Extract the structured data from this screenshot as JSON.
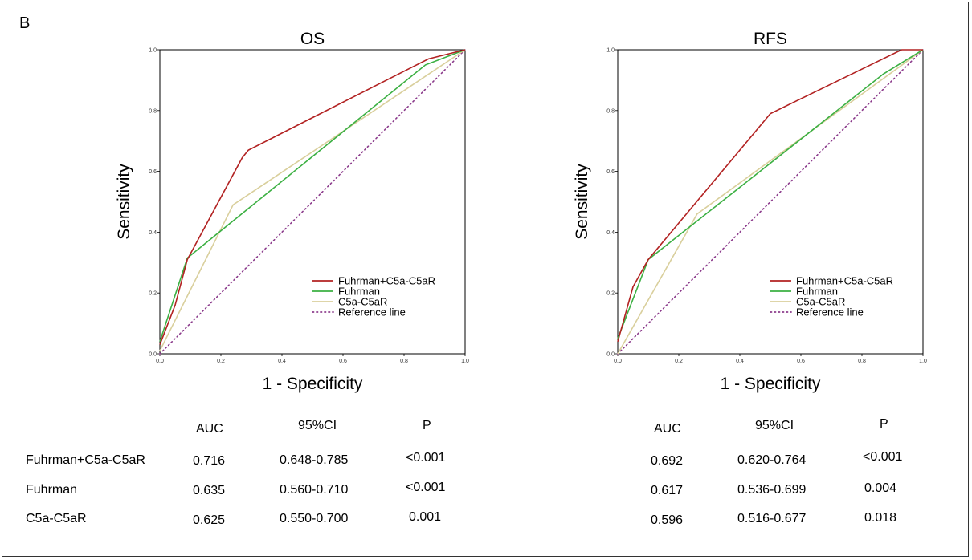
{
  "panel_label": "B",
  "chart_data": [
    {
      "type": "line",
      "title": "OS",
      "xlabel": "1 - Specificity",
      "ylabel": "Sensitivity",
      "xlim": [
        0,
        1
      ],
      "ylim": [
        0,
        1
      ],
      "ticks": [
        "0.0",
        "0.2",
        "0.4",
        "0.6",
        "0.8",
        "1.0"
      ],
      "legend": "bottom-right",
      "series": [
        {
          "name": "Fuhrman+C5a-C5aR",
          "color": "#b22222",
          "dash": "",
          "x": [
            0,
            0.05,
            0.09,
            0.27,
            0.29,
            0.88,
            0.9,
            1.0
          ],
          "y": [
            0.03,
            0.16,
            0.31,
            0.645,
            0.67,
            0.97,
            0.975,
            1.0
          ]
        },
        {
          "name": "Fuhrman",
          "color": "#3cb043",
          "dash": "",
          "x": [
            0,
            0.09,
            0.87,
            1.0
          ],
          "y": [
            0.04,
            0.315,
            0.95,
            1.0
          ]
        },
        {
          "name": "C5a-C5aR",
          "color": "#d9cf9c",
          "dash": "",
          "x": [
            0,
            0.24,
            1.0
          ],
          "y": [
            0.01,
            0.49,
            1.0
          ]
        },
        {
          "name": "Reference line",
          "color": "#8b3a8b",
          "dash": "1.5,3.5",
          "x": [
            0,
            1
          ],
          "y": [
            0,
            1
          ]
        }
      ]
    },
    {
      "type": "line",
      "title": "RFS",
      "xlabel": "1 - Specificity",
      "ylabel": "Sensitivity",
      "xlim": [
        0,
        1
      ],
      "ylim": [
        0,
        1
      ],
      "ticks": [
        "0.0",
        "0.2",
        "0.4",
        "0.6",
        "0.8",
        "1.0"
      ],
      "legend": "bottom-right",
      "series": [
        {
          "name": "Fuhrman+C5a-C5aR",
          "color": "#b22222",
          "dash": "",
          "x": [
            0,
            0.05,
            0.1,
            0.5,
            0.93,
            1.0
          ],
          "y": [
            0.04,
            0.22,
            0.31,
            0.79,
            1.0,
            1.0
          ]
        },
        {
          "name": "Fuhrman",
          "color": "#3cb043",
          "dash": "",
          "x": [
            0,
            0.1,
            0.87,
            1.0
          ],
          "y": [
            0.05,
            0.31,
            0.92,
            1.0
          ]
        },
        {
          "name": "C5a-C5aR",
          "color": "#d9cf9c",
          "dash": "",
          "x": [
            0,
            0.26,
            1.0
          ],
          "y": [
            0.0,
            0.46,
            1.0
          ]
        },
        {
          "name": "Reference line",
          "color": "#8b3a8b",
          "dash": "1.5,3.5",
          "x": [
            0,
            1
          ],
          "y": [
            0,
            1
          ]
        }
      ]
    },
    {
      "type": "table",
      "columns": [
        "AUC",
        "95%CI",
        "P"
      ],
      "rows": [
        {
          "label": "Fuhrman+C5a-C5aR",
          "os": {
            "auc": "0.716",
            "ci": "0.648-0.785",
            "p": "<0.001"
          },
          "rfs": {
            "auc": "0.692",
            "ci": "0.620-0.764",
            "p": "<0.001"
          }
        },
        {
          "label": "Fuhrman",
          "os": {
            "auc": "0.635",
            "ci": "0.560-0.710",
            "p": "<0.001"
          },
          "rfs": {
            "auc": "0.617",
            "ci": "0.536-0.699",
            "p": "0.004"
          }
        },
        {
          "label": "C5a-C5aR",
          "os": {
            "auc": "0.625",
            "ci": "0.550-0.700",
            "p": "0.001"
          },
          "rfs": {
            "auc": "0.596",
            "ci": "0.516-0.677",
            "p": "0.018"
          }
        }
      ]
    }
  ]
}
